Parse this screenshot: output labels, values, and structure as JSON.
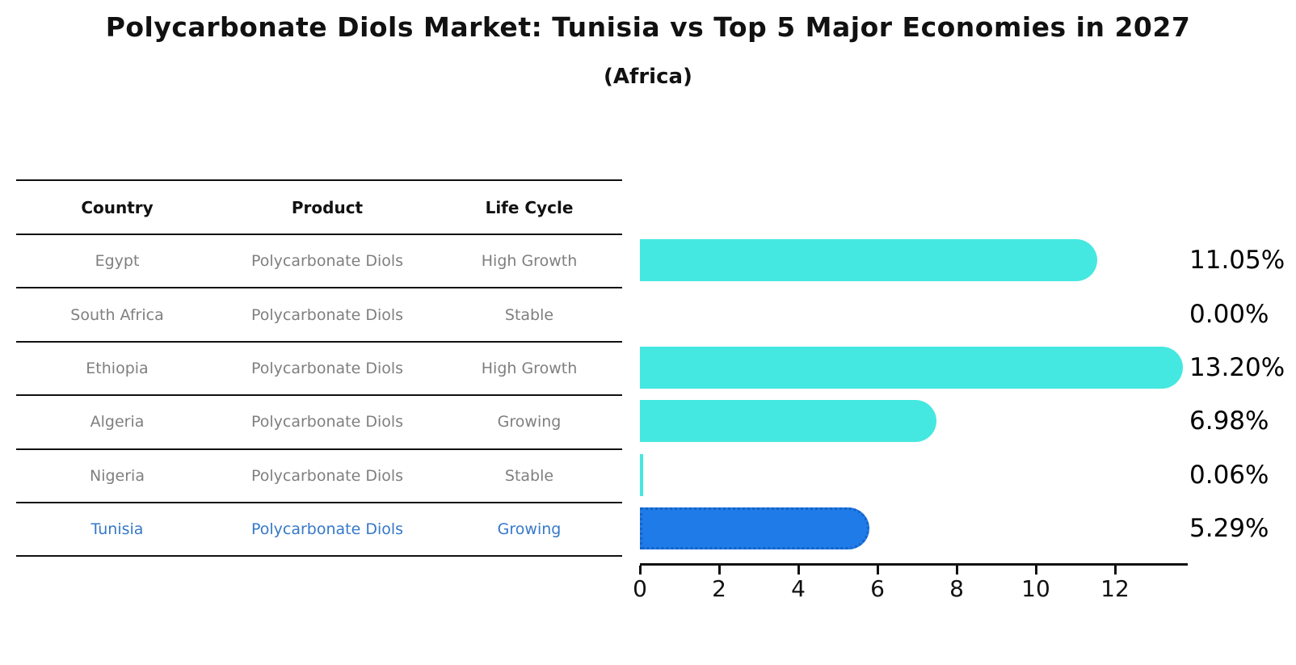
{
  "title": "Polycarbonate Diols Market: Tunisia vs Top 5 Major Economies in 2027",
  "subtitle": "(Africa)",
  "table": {
    "columns": [
      "Country",
      "Product",
      "Life Cycle"
    ],
    "rows": [
      {
        "country": "Egypt",
        "product": "Polycarbonate Diols",
        "life_cycle": "High Growth",
        "highlight": false
      },
      {
        "country": "South Africa",
        "product": "Polycarbonate Diols",
        "life_cycle": "Stable",
        "highlight": false
      },
      {
        "country": "Ethiopia",
        "product": "Polycarbonate Diols",
        "life_cycle": "High Growth",
        "highlight": false
      },
      {
        "country": "Algeria",
        "product": "Polycarbonate Diols",
        "life_cycle": "Growing",
        "highlight": false
      },
      {
        "country": "Nigeria",
        "product": "Polycarbonate Diols",
        "life_cycle": "Stable",
        "highlight": false
      },
      {
        "country": "Tunisia",
        "product": "Polycarbonate Diols",
        "life_cycle": "Growing",
        "highlight": true
      }
    ]
  },
  "chart_data": {
    "type": "bar",
    "orientation": "horizontal",
    "title": "Polycarbonate Diols Market: Tunisia vs Top 5 Major Economies in 2027",
    "subtitle": "(Africa)",
    "categories": [
      "Egypt",
      "South Africa",
      "Ethiopia",
      "Algeria",
      "Nigeria",
      "Tunisia"
    ],
    "values": [
      11.05,
      0.0,
      13.2,
      6.98,
      0.06,
      5.29
    ],
    "value_labels": [
      "11.05%",
      "0.00%",
      "13.20%",
      "6.98%",
      "0.06%",
      "5.29%"
    ],
    "xlabel": "",
    "ylabel": "",
    "xlim": [
      0,
      13.86
    ],
    "x_ticks": [
      0,
      2,
      4,
      6,
      8,
      10,
      12
    ],
    "grid": false,
    "legend": false,
    "highlight_category": "Tunisia"
  },
  "colors": {
    "bar": "#45E8E0",
    "highlight_bar": "#1F7BE8",
    "highlight_border": "#1663C7",
    "highlight_text": "#3578C8",
    "row_text": "#7f7f7f",
    "axis": "#111111",
    "label_text": "#000000"
  }
}
